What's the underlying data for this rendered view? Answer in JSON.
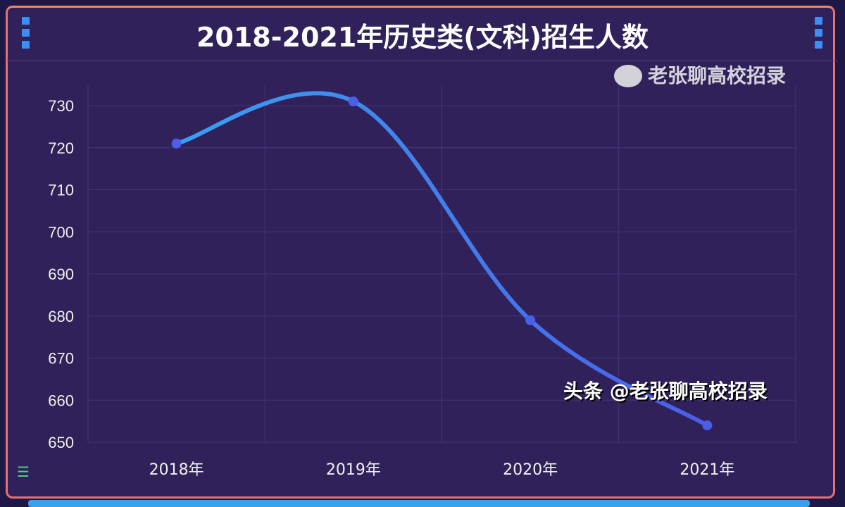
{
  "title": "2018-2021年历史类(文科)招生人数",
  "watermark": {
    "line1": "老张聊高校招录",
    "line2": "头条 @老张聊高校招录"
  },
  "colors": {
    "background": "#30215a",
    "line": "#3a8ff5",
    "point": "#4a5ee8",
    "border": "#e9706f",
    "grid": "#45367a"
  },
  "icons": {
    "top_left": "vertical-dots-icon",
    "top_right": "vertical-dots-icon",
    "bottom_left": "menu-icon",
    "watermark": "wechat-icon"
  },
  "chart_data": {
    "type": "line",
    "smooth": true,
    "title": "2018-2021年历史类(文科)招生人数",
    "categories": [
      "2018年",
      "2019年",
      "2020年",
      "2021年"
    ],
    "values": [
      721,
      731,
      679,
      654
    ],
    "ylim": [
      650,
      730
    ],
    "yticks": [
      650,
      660,
      670,
      680,
      690,
      700,
      710,
      720,
      730
    ],
    "grid": true,
    "xlabel": "",
    "ylabel": ""
  }
}
